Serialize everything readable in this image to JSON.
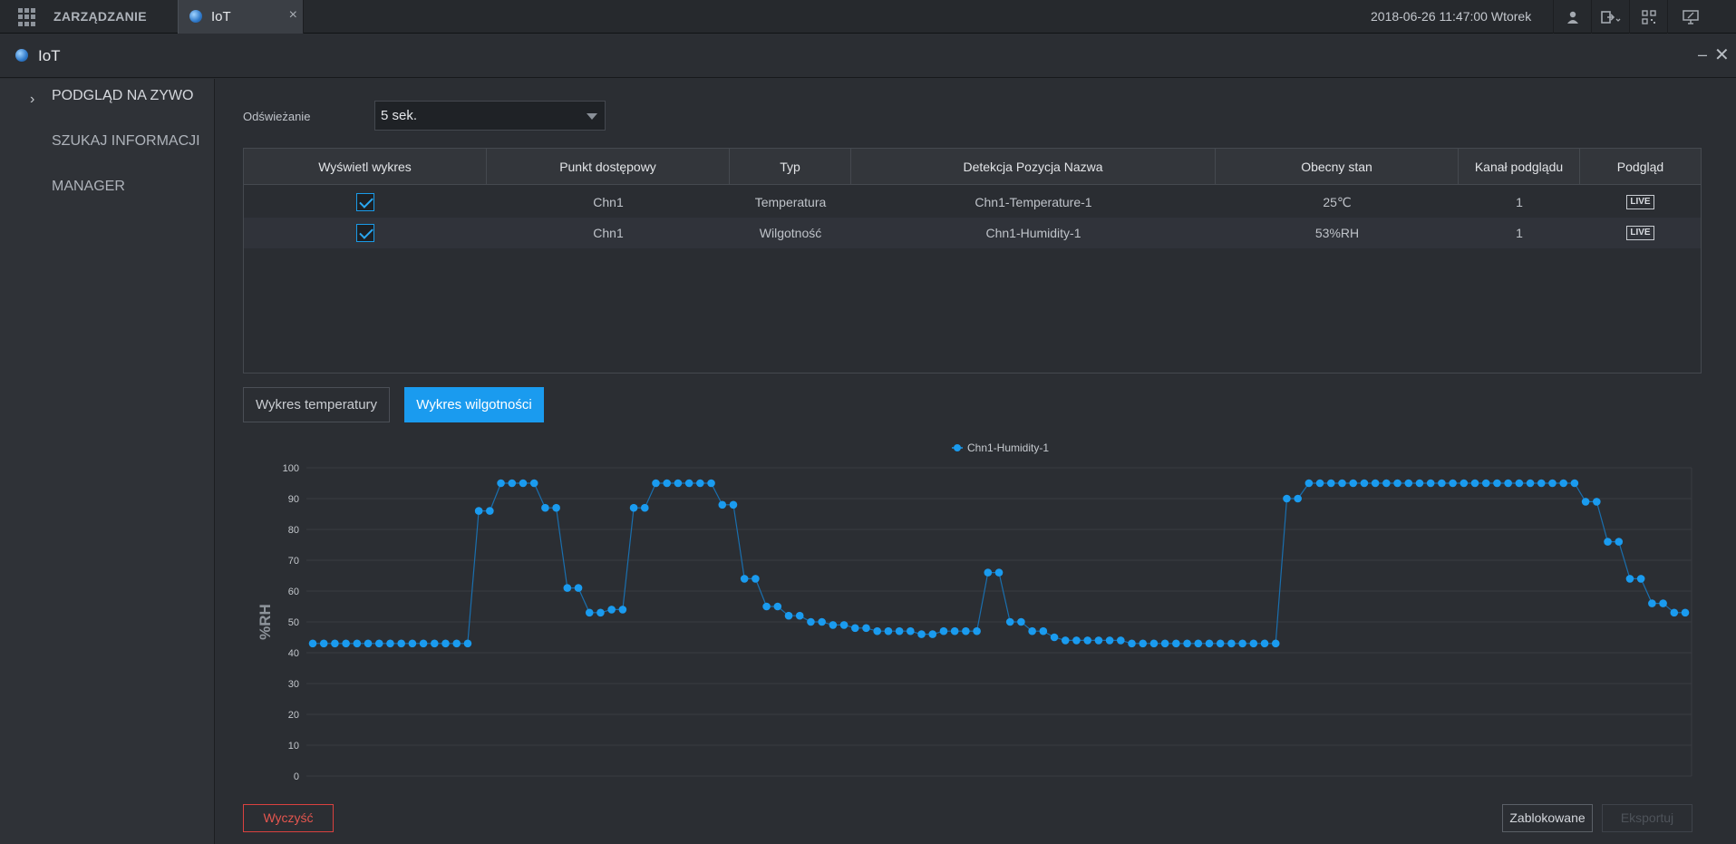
{
  "topbar": {
    "manage_label": "ZARZĄDZANIE",
    "tab_label": "IoT",
    "tab_close": "×",
    "datetime": "2018-06-26 11:47:00 Wtorek",
    "icons": [
      "user-icon",
      "logout-icon",
      "qr-code-icon",
      "monitor-icon"
    ]
  },
  "window": {
    "title": "IoT",
    "minimize": "–",
    "close": "✕"
  },
  "sidebar": {
    "items": [
      {
        "label": "PODGLĄD NA ZYWO",
        "active": true
      },
      {
        "label": "SZUKAJ INFORMACJI",
        "active": false
      },
      {
        "label": "MANAGER",
        "active": false
      }
    ]
  },
  "refresh": {
    "label": "Odświeżanie",
    "value": "5 sek."
  },
  "table": {
    "headers": [
      "Wyświetl wykres",
      "Punkt dostępowy",
      "Typ",
      "Detekcja Pozycja Nazwa",
      "Obecny stan",
      "Kanał podglądu",
      "Podgląd"
    ],
    "rows": [
      {
        "checked": true,
        "access_point": "Chn1",
        "type": "Temperatura",
        "name": "Chn1-Temperature-1",
        "state": "25℃",
        "channel": "1",
        "preview": "LIVE"
      },
      {
        "checked": true,
        "access_point": "Chn1",
        "type": "Wilgotność",
        "name": "Chn1-Humidity-1",
        "state": "53%RH",
        "channel": "1",
        "preview": "LIVE"
      }
    ]
  },
  "chart_tabs": {
    "temperature": "Wykres temperatury",
    "humidity": "Wykres wilgotności"
  },
  "chart_data": {
    "type": "line",
    "ylabel": "%RH",
    "ylim": [
      0,
      100
    ],
    "yticks": [
      0,
      10,
      20,
      30,
      40,
      50,
      60,
      70,
      80,
      90,
      100
    ],
    "grid": true,
    "legend_position": "top-center",
    "series": [
      {
        "name": "Chn1-Humidity-1",
        "color": "#1a9bef",
        "values": [
          43,
          43,
          43,
          43,
          43,
          43,
          43,
          43,
          43,
          43,
          43,
          43,
          43,
          43,
          43,
          86,
          86,
          95,
          95,
          95,
          95,
          87,
          87,
          61,
          61,
          53,
          53,
          54,
          54,
          87,
          87,
          95,
          95,
          95,
          95,
          95,
          95,
          88,
          88,
          64,
          64,
          55,
          55,
          52,
          52,
          50,
          50,
          49,
          49,
          48,
          48,
          47,
          47,
          47,
          47,
          46,
          46,
          47,
          47,
          47,
          47,
          66,
          66,
          50,
          50,
          47,
          47,
          45,
          44,
          44,
          44,
          44,
          44,
          44,
          43,
          43,
          43,
          43,
          43,
          43,
          43,
          43,
          43,
          43,
          43,
          43,
          43,
          43,
          90,
          90,
          95,
          95,
          95,
          95,
          95,
          95,
          95,
          95,
          95,
          95,
          95,
          95,
          95,
          95,
          95,
          95,
          95,
          95,
          95,
          95,
          95,
          95,
          95,
          95,
          95,
          89,
          89,
          76,
          76,
          64,
          64,
          56,
          56,
          53,
          53
        ]
      }
    ]
  },
  "footer": {
    "clear": "Wyczyść",
    "locked": "Zablokowane",
    "export": "Eksportuj"
  }
}
